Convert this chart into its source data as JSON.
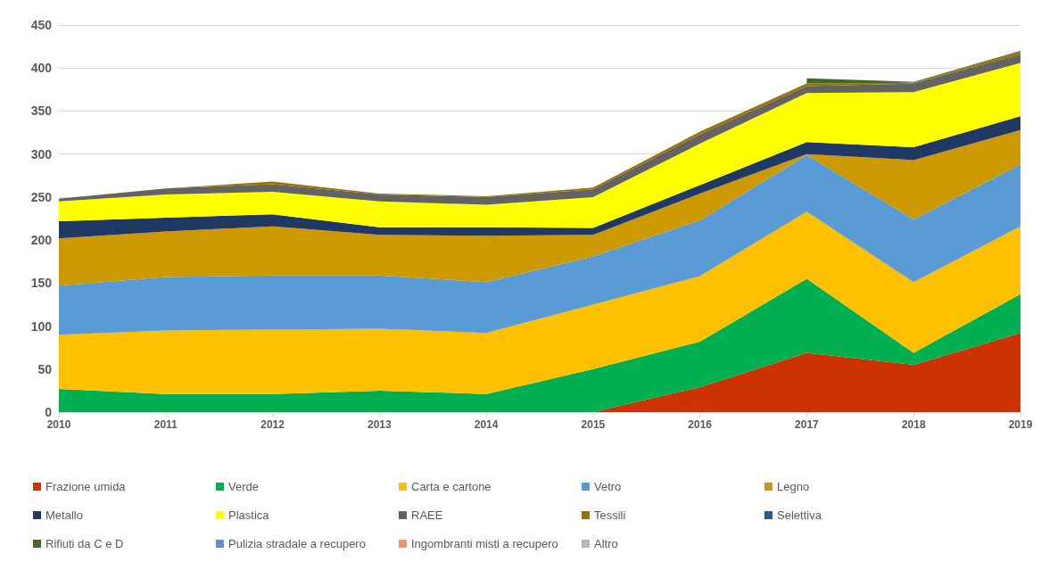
{
  "chart_data": {
    "type": "area",
    "stacked": true,
    "categories": [
      "2010",
      "2011",
      "2012",
      "2013",
      "2014",
      "2015",
      "2016",
      "2017",
      "2018",
      "2019"
    ],
    "ylim": [
      0,
      450
    ],
    "yticks": [
      0,
      50,
      100,
      150,
      200,
      250,
      300,
      350,
      400,
      450
    ],
    "grid": "y",
    "legend": "bottom",
    "series": [
      {
        "name": "Frazione umida",
        "color": "#cc3300",
        "values": [
          0,
          0,
          0,
          0,
          0,
          0,
          29,
          69,
          55,
          92
        ]
      },
      {
        "name": "Verde",
        "color": "#00b050",
        "values": [
          27,
          21,
          21,
          25,
          21,
          50,
          53,
          86,
          14,
          45
        ]
      },
      {
        "name": "Carta e cartone",
        "color": "#ffc000",
        "values": [
          63,
          74,
          75,
          72,
          71,
          75,
          76,
          78,
          82,
          79
        ]
      },
      {
        "name": "Vetro",
        "color": "#5b9bd5",
        "values": [
          57,
          62,
          63,
          62,
          59,
          56,
          65,
          66,
          73,
          72
        ]
      },
      {
        "name": "Legno",
        "color": "#cc9900",
        "values": [
          55,
          53,
          57,
          47,
          54,
          25,
          31,
          1,
          69,
          40
        ]
      },
      {
        "name": "Metallo",
        "color": "#203864",
        "values": [
          20,
          16,
          14,
          9,
          10,
          8,
          10,
          14,
          15,
          16
        ]
      },
      {
        "name": "Plastica",
        "color": "#ffff00",
        "values": [
          23,
          27,
          26,
          30,
          26,
          36,
          48,
          57,
          64,
          62
        ]
      },
      {
        "name": "RAEE",
        "color": "#636363",
        "values": [
          3,
          7,
          9,
          8,
          9,
          9,
          11,
          8,
          10,
          10
        ]
      },
      {
        "name": "Tessili",
        "color": "#997300",
        "values": [
          0,
          0,
          3,
          1,
          1,
          2,
          3,
          3,
          1,
          3
        ]
      },
      {
        "name": "Selettiva",
        "color": "#255e91",
        "values": [
          null,
          null,
          null,
          null,
          null,
          null,
          null,
          null,
          null,
          null
        ]
      },
      {
        "name": "Rifiuti da C e D",
        "color": "#43682b",
        "values": [
          null,
          null,
          null,
          null,
          null,
          null,
          null,
          6,
          1,
          1
        ]
      },
      {
        "name": "Pulizia stradale a recupero",
        "color": "#698ed0",
        "values": [
          null,
          null,
          null,
          null,
          null,
          null,
          null,
          null,
          null,
          null
        ]
      },
      {
        "name": "Ingombranti misti a recupero",
        "color": "#f1975a",
        "values": [
          null,
          null,
          null,
          null,
          null,
          null,
          null,
          null,
          null,
          null
        ]
      },
      {
        "name": "Altro",
        "color": "#b7b7b7",
        "values": [
          null,
          null,
          null,
          null,
          null,
          null,
          null,
          null,
          null,
          null
        ]
      }
    ]
  }
}
